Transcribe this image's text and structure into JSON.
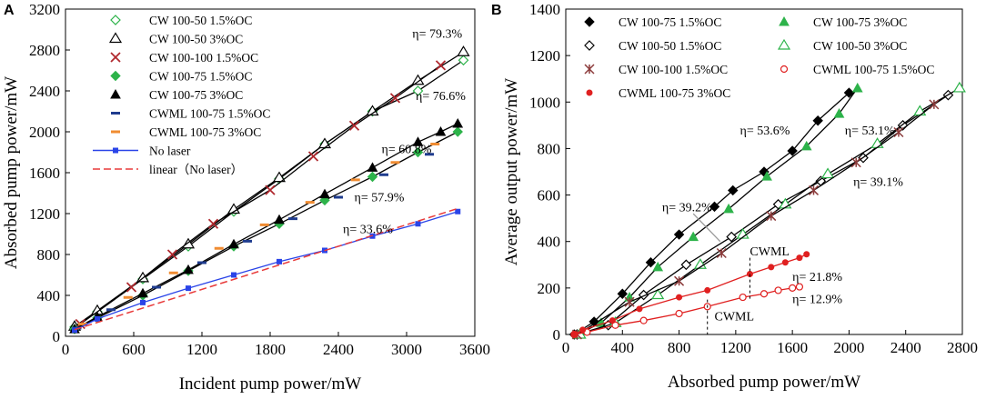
{
  "chart_data": [
    {
      "panel": "A",
      "type": "line",
      "xlabel": "Incident pump power/mW",
      "ylabel": "Absorbed pump power/mW",
      "xlim": [
        0,
        3600
      ],
      "ylim": [
        0,
        3200
      ],
      "xticks": [
        0,
        600,
        1200,
        1800,
        2400,
        3000,
        3600
      ],
      "yticks": [
        0,
        400,
        800,
        1200,
        1600,
        2000,
        2400,
        2800,
        3200
      ],
      "legend_position": "top-left",
      "series": [
        {
          "name": "CW 100-50 1.5%OC",
          "marker": "diamond-open",
          "color": "#2db34a",
          "line": "#000000",
          "points": [
            [
              80,
              90
            ],
            [
              280,
              240
            ],
            [
              680,
              560
            ],
            [
              1080,
              880
            ],
            [
              1480,
              1220
            ],
            [
              1880,
              1540
            ],
            [
              2280,
              1880
            ],
            [
              2700,
              2200
            ],
            [
              3100,
              2400
            ],
            [
              3500,
              2700
            ]
          ]
        },
        {
          "name": "CW 100-50 3%OC",
          "marker": "triangle-open",
          "color": "#000000",
          "line": "#000000",
          "points": [
            [
              80,
              95
            ],
            [
              280,
              250
            ],
            [
              680,
              570
            ],
            [
              1080,
              900
            ],
            [
              1480,
              1240
            ],
            [
              1880,
              1550
            ],
            [
              2280,
              1880
            ],
            [
              2700,
              2200
            ],
            [
              3100,
              2500
            ],
            [
              3500,
              2780
            ]
          ]
        },
        {
          "name": "CW 100-100 1.5%OC",
          "marker": "x",
          "color": "#b0282e",
          "line": "#000000",
          "points": [
            [
              130,
              120
            ],
            [
              580,
              480
            ],
            [
              940,
              800
            ],
            [
              1300,
              1100
            ],
            [
              1800,
              1430
            ],
            [
              2180,
              1760
            ],
            [
              2540,
              2060
            ],
            [
              2900,
              2330
            ],
            [
              3300,
              2650
            ]
          ]
        },
        {
          "name": "CW 100-75 1.5%OC",
          "marker": "diamond",
          "color": "#2db34a",
          "line": "#000000",
          "points": [
            [
              80,
              70
            ],
            [
              280,
              180
            ],
            [
              680,
              400
            ],
            [
              1080,
              640
            ],
            [
              1480,
              880
            ],
            [
              1880,
              1100
            ],
            [
              2280,
              1330
            ],
            [
              2700,
              1560
            ],
            [
              3100,
              1800
            ],
            [
              3450,
              2000
            ]
          ]
        },
        {
          "name": "CW 100-75 3%OC",
          "marker": "triangle",
          "color": "#000000",
          "line": "#000000",
          "points": [
            [
              80,
              70
            ],
            [
              280,
              190
            ],
            [
              680,
              420
            ],
            [
              1080,
              650
            ],
            [
              1480,
              900
            ],
            [
              1880,
              1140
            ],
            [
              2280,
              1390
            ],
            [
              2700,
              1650
            ],
            [
              3100,
              1900
            ],
            [
              3300,
              2000
            ],
            [
              3450,
              2080
            ]
          ]
        },
        {
          "name": "CWML 100-75 1.5%OC",
          "marker": "dash",
          "color": "#1f3c8e",
          "line": null,
          "points": [
            [
              100,
              80
            ],
            [
              400,
              260
            ],
            [
              800,
              480
            ],
            [
              1200,
              720
            ],
            [
              1600,
              930
            ],
            [
              2000,
              1150
            ],
            [
              2400,
              1360
            ],
            [
              2800,
              1580
            ],
            [
              3200,
              1780
            ]
          ]
        },
        {
          "name": "CWML 100-75 3%OC",
          "marker": "dash",
          "color": "#f08c32",
          "line": null,
          "points": [
            [
              150,
              120
            ],
            [
              550,
              380
            ],
            [
              950,
              620
            ],
            [
              1350,
              860
            ],
            [
              1750,
              1090
            ],
            [
              2150,
              1310
            ],
            [
              2550,
              1530
            ],
            [
              2900,
              1700
            ],
            [
              3250,
              1880
            ]
          ]
        },
        {
          "name": "No laser",
          "marker": "square",
          "color": "#2a44e8",
          "line": "#2a44e8",
          "points": [
            [
              80,
              60
            ],
            [
              280,
              170
            ],
            [
              680,
              330
            ],
            [
              1080,
              470
            ],
            [
              1480,
              600
            ],
            [
              1880,
              730
            ],
            [
              2280,
              840
            ],
            [
              2700,
              980
            ],
            [
              3100,
              1100
            ],
            [
              3450,
              1220
            ]
          ]
        },
        {
          "name": "linear（No laser）",
          "marker": "none",
          "color": "#e83a3a",
          "line": "#e83a3a",
          "dashed": true,
          "points": [
            [
              80,
              65
            ],
            [
              3450,
              1250
            ]
          ]
        }
      ],
      "annotations": [
        {
          "text": "η= 79.3%",
          "x": 3050,
          "y": 2920
        },
        {
          "text": "η= 76.6%",
          "x": 3080,
          "y": 2310
        },
        {
          "text": "η= 60.8%",
          "x": 2780,
          "y": 1790
        },
        {
          "text": "η= 57.9%",
          "x": 2540,
          "y": 1320
        },
        {
          "text": "η= 33.6%",
          "x": 2440,
          "y": 1010
        }
      ]
    },
    {
      "panel": "B",
      "type": "line",
      "xlabel": "Absorbed pump power/mW",
      "ylabel": "Average output power/mW",
      "xlim": [
        0,
        2800
      ],
      "ylim": [
        0,
        1400
      ],
      "xticks": [
        0,
        400,
        800,
        1200,
        1600,
        2000,
        2400,
        2800
      ],
      "yticks": [
        0,
        200,
        400,
        600,
        800,
        1000,
        1200,
        1400
      ],
      "legend_position": "top",
      "series": [
        {
          "name": "CW 100-75 1.5%OC",
          "marker": "diamond",
          "color": "#000000",
          "line": "#000000",
          "points": [
            [
              60,
              0
            ],
            [
              200,
              55
            ],
            [
              400,
              175
            ],
            [
              600,
              310
            ],
            [
              800,
              430
            ],
            [
              1050,
              550
            ],
            [
              1180,
              620
            ],
            [
              1400,
              700
            ],
            [
              1600,
              790
            ],
            [
              1780,
              920
            ],
            [
              2000,
              1040
            ]
          ]
        },
        {
          "name": "CW 100-75 3%OC",
          "marker": "triangle",
          "color": "#2db34a",
          "line": "#000000",
          "points": [
            [
              80,
              0
            ],
            [
              250,
              50
            ],
            [
              450,
              160
            ],
            [
              650,
              290
            ],
            [
              900,
              420
            ],
            [
              1150,
              540
            ],
            [
              1420,
              680
            ],
            [
              1700,
              810
            ],
            [
              1930,
              950
            ],
            [
              2060,
              1060
            ]
          ]
        },
        {
          "name": "CW 100-50 1.5%OC",
          "marker": "diamond-open",
          "color": "#000000",
          "line": "#000000",
          "points": [
            [
              80,
              0
            ],
            [
              300,
              40
            ],
            [
              550,
              170
            ],
            [
              850,
              300
            ],
            [
              1170,
              420
            ],
            [
              1500,
              560
            ],
            [
              1800,
              660
            ],
            [
              2100,
              760
            ],
            [
              2380,
              900
            ],
            [
              2700,
              1030
            ]
          ]
        },
        {
          "name": "CW 100-50 3%OC",
          "marker": "triangle-open",
          "color": "#2db34a",
          "line": "#000000",
          "points": [
            [
              100,
              0
            ],
            [
              350,
              50
            ],
            [
              650,
              170
            ],
            [
              950,
              300
            ],
            [
              1250,
              430
            ],
            [
              1550,
              560
            ],
            [
              1850,
              690
            ],
            [
              2200,
              820
            ],
            [
              2500,
              960
            ],
            [
              2780,
              1060
            ]
          ]
        },
        {
          "name": "CW 100-100 1.5%OC",
          "marker": "star",
          "color": "#8b3a3a",
          "line": "#000000",
          "points": [
            [
              80,
              0
            ],
            [
              450,
              140
            ],
            [
              800,
              230
            ],
            [
              1100,
              350
            ],
            [
              1450,
              510
            ],
            [
              1750,
              620
            ],
            [
              2050,
              740
            ],
            [
              2350,
              870
            ],
            [
              2600,
              990
            ]
          ]
        },
        {
          "name": "CWML 100-75 1.5%OC",
          "marker": "circle-open",
          "color": "#e02020",
          "line": "#e02020",
          "points": [
            [
              60,
              0
            ],
            [
              150,
              10
            ],
            [
              350,
              40
            ],
            [
              550,
              60
            ],
            [
              800,
              90
            ],
            [
              1000,
              120
            ],
            [
              1250,
              160
            ],
            [
              1400,
              175
            ],
            [
              1500,
              190
            ],
            [
              1600,
              200
            ],
            [
              1650,
              205
            ]
          ]
        },
        {
          "name": "CWML 100-75 3%OC",
          "marker": "circle",
          "color": "#e02020",
          "line": "#e02020",
          "points": [
            [
              60,
              0
            ],
            [
              120,
              20
            ],
            [
              330,
              60
            ],
            [
              520,
              110
            ],
            [
              800,
              160
            ],
            [
              1000,
              190
            ],
            [
              1300,
              260
            ],
            [
              1450,
              290
            ],
            [
              1550,
              310
            ],
            [
              1650,
              330
            ],
            [
              1700,
              345
            ]
          ]
        }
      ],
      "annotations": [
        {
          "text": "η= 53.6%",
          "x": 1230,
          "y": 860
        },
        {
          "text": "η= 53.1%",
          "x": 1970,
          "y": 860
        },
        {
          "text": "η= 39.2%",
          "x": 680,
          "y": 530
        },
        {
          "text": "η= 39.1%",
          "x": 2030,
          "y": 640
        },
        {
          "text": "η= 21.8%",
          "x": 1600,
          "y": 230
        },
        {
          "text": "η= 12.9%",
          "x": 1600,
          "y": 135
        },
        {
          "text": "CWML",
          "x": 1300,
          "y": 340
        },
        {
          "text": "CWML",
          "x": 1050,
          "y": 60
        }
      ]
    }
  ]
}
